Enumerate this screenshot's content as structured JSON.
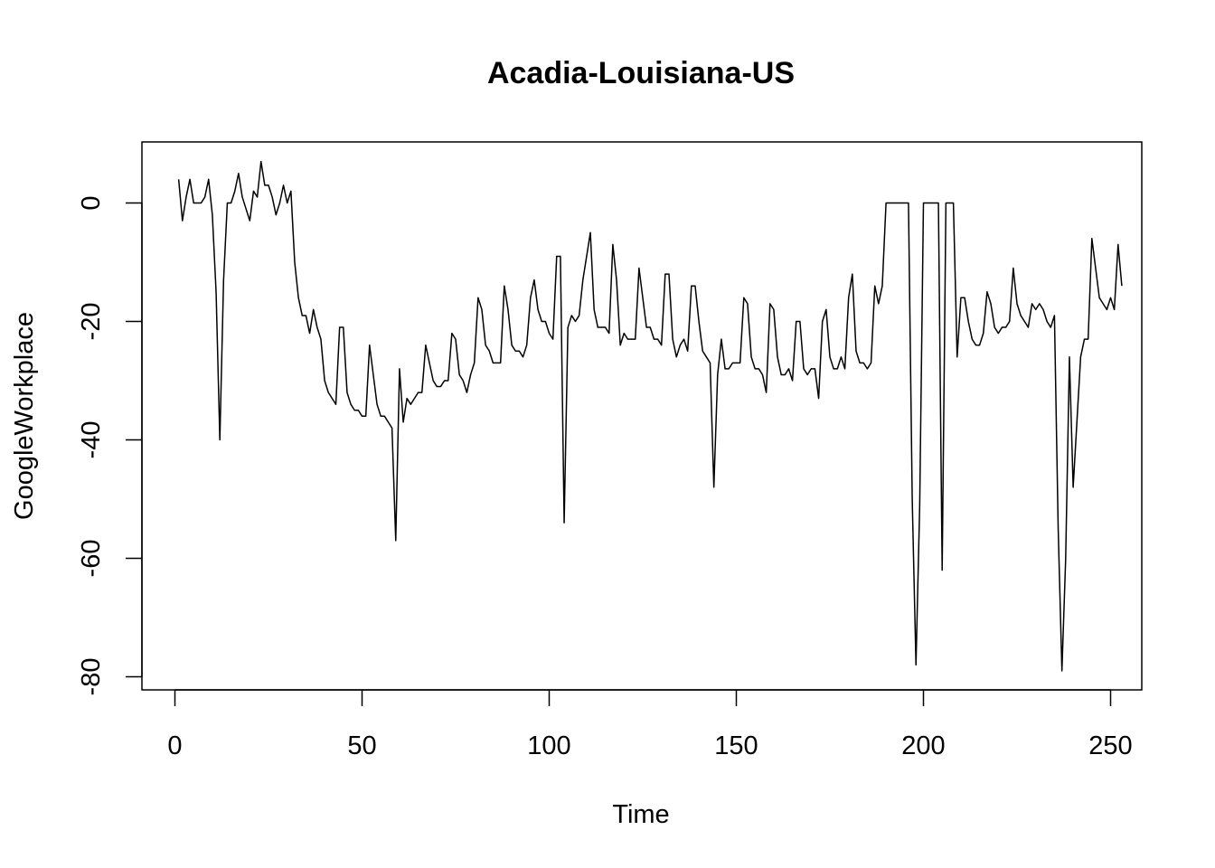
{
  "chart_data": {
    "type": "line",
    "title": "Acadia-Louisiana-US",
    "xlabel": "Time",
    "ylabel": "GoogleWorkplace",
    "xlim": [
      1,
      248
    ],
    "ylim": [
      -79,
      7
    ],
    "xticks": [
      0,
      50,
      100,
      150,
      200,
      250
    ],
    "yticks": [
      0,
      -20,
      -40,
      -60,
      -80
    ],
    "grid": false,
    "line_color": "#000000",
    "series": [
      {
        "x_start": 1,
        "values": [
          4,
          -3,
          1,
          4,
          0,
          0,
          0,
          1,
          4,
          -2,
          -15,
          -40,
          -13,
          0,
          0,
          2,
          5,
          1,
          -1,
          -3,
          2,
          1,
          7,
          3,
          3,
          1,
          -2,
          0,
          3,
          0,
          2,
          -10,
          -16,
          -19,
          -19,
          -22,
          -18,
          -21,
          -23,
          -30,
          -32,
          -33,
          -34,
          -21,
          -21,
          -32,
          -34,
          -35,
          -35,
          -36,
          -36,
          -24,
          -29,
          -34,
          -36,
          -36,
          -37,
          -38,
          -57,
          -28,
          -37,
          -33,
          -34,
          -33,
          -32,
          -32,
          -24,
          -27,
          -30,
          -31,
          -31,
          -30,
          -30,
          -22,
          -23,
          -29,
          -30,
          -32,
          -29,
          -27,
          -16,
          -18,
          -24,
          -25,
          -27,
          -27,
          -27,
          -14,
          -18,
          -24,
          -25,
          -25,
          -26,
          -24,
          -16,
          -13,
          -18,
          -20,
          -20,
          -22,
          -23,
          -9,
          -9,
          -54,
          -21,
          -19,
          -20,
          -19,
          -13,
          -9,
          -5,
          -18,
          -21,
          -21,
          -21,
          -22,
          -7,
          -13,
          -24,
          -22,
          -23,
          -23,
          -23,
          -11,
          -16,
          -21,
          -21,
          -23,
          -23,
          -24,
          -12,
          -12,
          -23,
          -26,
          -24,
          -23,
          -25,
          -14,
          -14,
          -20,
          -25,
          -26,
          -27,
          -48,
          -29,
          -23,
          -28,
          -28,
          -27,
          -27,
          -27,
          -16,
          -17,
          -26,
          -28,
          -28,
          -29,
          -32,
          -17,
          -18,
          -26,
          -29,
          -29,
          -28,
          -30,
          -20,
          -20,
          -28,
          -29,
          -28,
          -28,
          -33,
          -20,
          -18,
          -26,
          -28,
          -28,
          -26,
          -28,
          -16,
          -12,
          -25,
          -27,
          -27,
          -28,
          -27,
          -14,
          -17,
          -14,
          0,
          0,
          0,
          0,
          0,
          0,
          0,
          -50,
          -78,
          -51,
          0,
          0,
          0,
          0,
          0,
          -62,
          0,
          0,
          0,
          -26,
          -16,
          -16,
          -20,
          -23,
          -24,
          -24,
          -22,
          -15,
          -17,
          -21,
          -22,
          -21,
          -21,
          -20,
          -11,
          -17,
          -19,
          -20,
          -21,
          -17,
          -18,
          -17,
          -18,
          -20,
          -21,
          -19,
          -55,
          -79,
          -60,
          -26,
          -48,
          -37,
          -26,
          -23,
          -23,
          -6,
          -11,
          -16,
          -17,
          -18,
          -16,
          -18,
          -7,
          -14
        ]
      }
    ]
  }
}
